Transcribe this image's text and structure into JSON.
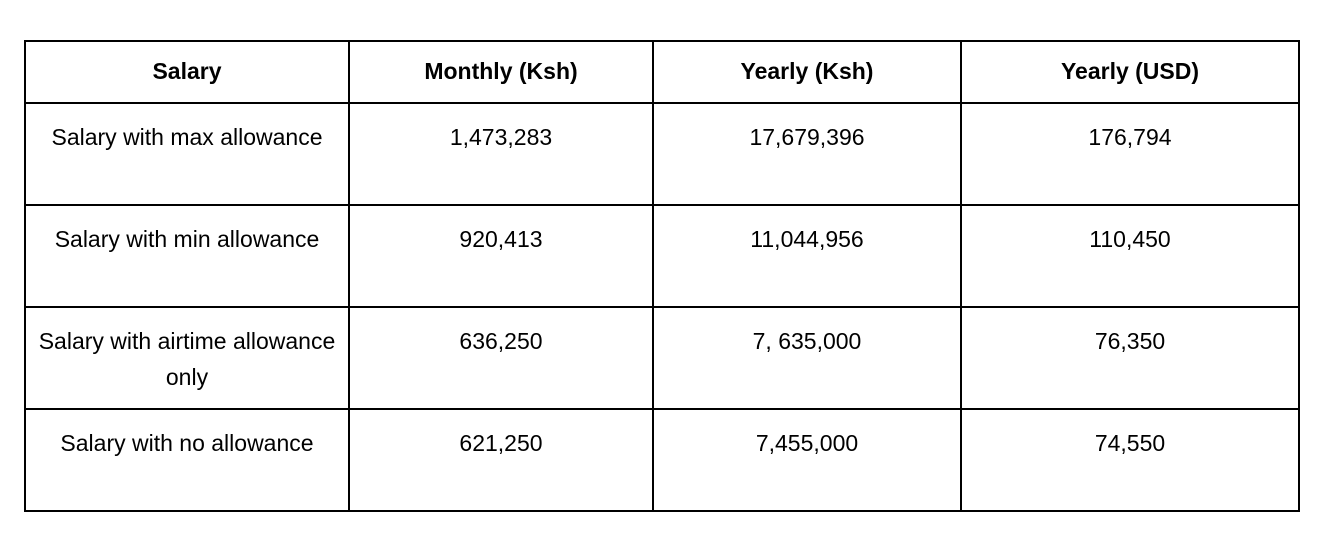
{
  "table": {
    "columns": [
      "Salary",
      "Monthly (Ksh)",
      "Yearly (Ksh)",
      "Yearly (USD)"
    ],
    "rows": [
      [
        "Salary with max allowance",
        "1,473,283",
        "17,679,396",
        "176,794"
      ],
      [
        "Salary with min allowance",
        "920,413",
        "11,044,956",
        "110,450"
      ],
      [
        "Salary with airtime allowance only",
        "636,250",
        "7, 635,000",
        "76,350"
      ],
      [
        "Salary with no allowance",
        "621,250",
        "7,455,000",
        "74,550"
      ]
    ]
  },
  "colors": {
    "border": "#000000",
    "background": "#ffffff",
    "text": "#000000"
  }
}
